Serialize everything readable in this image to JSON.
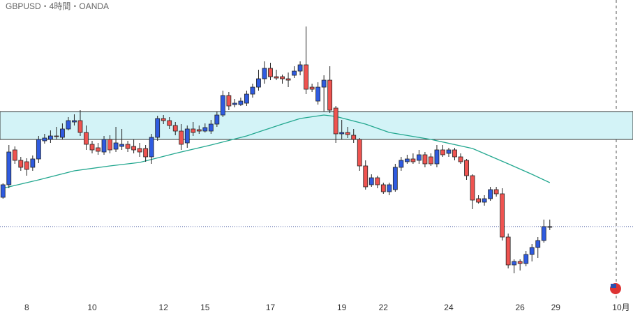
{
  "chart_data": {
    "type": "candlestick",
    "title": "GBPUSD・4時間・OANDA",
    "xlim": [
      -0.5,
      106
    ],
    "ylim": [
      0,
      430
    ],
    "xticks": [
      {
        "value": 4,
        "label": "8"
      },
      {
        "value": 15,
        "label": "10"
      },
      {
        "value": 27,
        "label": "12"
      },
      {
        "value": 34,
        "label": "15"
      },
      {
        "value": 45,
        "label": "17"
      },
      {
        "value": 57,
        "label": "19"
      },
      {
        "value": 64,
        "label": "22"
      },
      {
        "value": 75,
        "label": "24"
      },
      {
        "value": 87,
        "label": "26"
      },
      {
        "value": 93,
        "label": "29"
      },
      {
        "value": 104,
        "label": "10月"
      }
    ],
    "x": [
      0,
      1,
      2,
      3,
      4,
      5,
      6,
      7,
      8,
      9,
      10,
      11,
      12,
      13,
      14,
      15,
      16,
      17,
      18,
      19,
      20,
      21,
      22,
      23,
      24,
      25,
      26,
      27,
      28,
      29,
      30,
      31,
      32,
      33,
      34,
      35,
      36,
      37,
      38,
      39,
      40,
      41,
      42,
      43,
      44,
      45,
      46,
      47,
      48,
      49,
      50,
      51,
      52,
      53,
      54,
      55,
      56,
      57,
      58,
      59,
      60,
      61,
      62,
      63,
      64,
      65,
      66,
      67,
      68,
      69,
      70,
      71,
      72,
      73,
      74,
      75,
      76,
      77,
      78,
      79,
      80,
      81,
      82,
      83,
      84,
      85,
      86,
      87,
      88,
      89,
      90,
      91,
      92
    ],
    "open": [
      147,
      165,
      215,
      200,
      198,
      190,
      202,
      228,
      230,
      235,
      233,
      245,
      255,
      257,
      240,
      223,
      218,
      212,
      230,
      216,
      220,
      223,
      220,
      217,
      217,
      205,
      233,
      260,
      257,
      250,
      242,
      225,
      245,
      244,
      242,
      242,
      252,
      265,
      293,
      280,
      280,
      282,
      295,
      305,
      317,
      332,
      320,
      320,
      317,
      322,
      328,
      337,
      305,
      285,
      305,
      315,
      275,
      238,
      240,
      236,
      230,
      192,
      165,
      175,
      165,
      155,
      158,
      190,
      198,
      202,
      200,
      208,
      205,
      195,
      215,
      210,
      215,
      205,
      200,
      178,
      145,
      140,
      145,
      158,
      152,
      90,
      50,
      55,
      52,
      65,
      75,
      85,
      104
    ],
    "high": [
      167,
      222,
      220,
      205,
      203,
      207,
      235,
      238,
      243,
      248,
      253,
      262,
      266,
      272,
      250,
      228,
      225,
      235,
      236,
      248,
      245,
      228,
      230,
      225,
      222,
      238,
      264,
      265,
      262,
      255,
      252,
      250,
      255,
      250,
      253,
      258,
      270,
      300,
      298,
      288,
      290,
      300,
      310,
      330,
      342,
      340,
      330,
      323,
      326,
      335,
      342,
      392,
      310,
      312,
      322,
      335,
      278,
      258,
      248,
      245,
      232,
      200,
      180,
      178,
      168,
      168,
      195,
      205,
      208,
      210,
      215,
      212,
      210,
      222,
      222,
      218,
      218,
      210,
      202,
      180,
      150,
      150,
      162,
      162,
      160,
      95,
      58,
      58,
      70,
      80,
      90,
      115,
      115
    ],
    "low": [
      145,
      160,
      195,
      185,
      178,
      185,
      196,
      224,
      225,
      230,
      230,
      243,
      250,
      235,
      215,
      210,
      208,
      208,
      210,
      212,
      215,
      212,
      210,
      205,
      198,
      195,
      228,
      252,
      245,
      236,
      215,
      218,
      235,
      238,
      240,
      238,
      248,
      262,
      272,
      276,
      278,
      278,
      290,
      300,
      310,
      315,
      315,
      310,
      305,
      318,
      322,
      295,
      298,
      280,
      270,
      268,
      225,
      230,
      232,
      225,
      185,
      158,
      162,
      160,
      152,
      150,
      155,
      185,
      195,
      195,
      195,
      190,
      192,
      190,
      205,
      205,
      200,
      195,
      172,
      130,
      138,
      135,
      142,
      148,
      85,
      45,
      38,
      42,
      48,
      55,
      60,
      82,
      100
    ],
    "close": [
      165,
      212,
      200,
      190,
      187,
      202,
      230,
      232,
      235,
      234,
      245,
      257,
      257,
      240,
      223,
      215,
      213,
      230,
      215,
      225,
      223,
      217,
      215,
      212,
      205,
      233,
      260,
      257,
      250,
      242,
      223,
      245,
      240,
      242,
      247,
      252,
      265,
      293,
      278,
      282,
      285,
      295,
      305,
      317,
      332,
      320,
      318,
      317,
      315,
      328,
      337,
      302,
      302,
      305,
      315,
      272,
      238,
      240,
      237,
      230,
      192,
      162,
      175,
      165,
      155,
      165,
      190,
      200,
      202,
      198,
      208,
      195,
      195,
      215,
      208,
      215,
      205,
      198,
      178,
      143,
      140,
      145,
      158,
      152,
      90,
      50,
      55,
      52,
      65,
      75,
      85,
      105,
      105
    ],
    "up_color": "#2f5be0",
    "down_color": "#ef5350",
    "ma": {
      "color": "#22a78f",
      "x": [
        0,
        6,
        12,
        18,
        23,
        29,
        35,
        41,
        47,
        50,
        54,
        56,
        61,
        65,
        72,
        79,
        85,
        89,
        92
      ],
      "values": [
        160,
        172,
        185,
        192,
        197,
        210,
        222,
        235,
        252,
        260,
        265,
        263,
        252,
        240,
        230,
        217,
        195,
        180,
        168
      ]
    },
    "zone": [
      230,
      270
    ],
    "last_price": 105
  }
}
